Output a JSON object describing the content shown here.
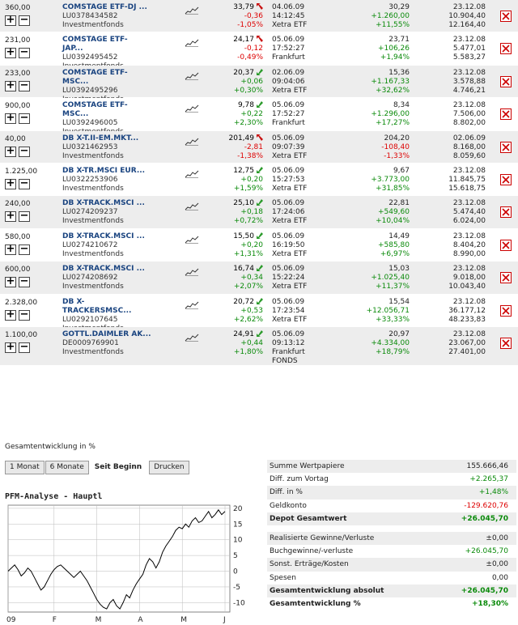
{
  "holdings": [
    {
      "qty": "360,00",
      "name": "COMSTAGE ETF-DJ ...",
      "name2": "",
      "isin": "LU0378434582",
      "type": "Investmentfonds",
      "price": "33,79",
      "change": "-0,36",
      "change_pct": "-1,05%",
      "dir": "down",
      "date": "04.06.09",
      "time": "14:12:45",
      "exchange": "Xetra ETF",
      "exchange2": "",
      "val1": "30,29",
      "val2": "+1.260,00",
      "val3": "+11,55%",
      "buy_date": "23.12.08",
      "buy1": "10.904,40",
      "buy2": "12.164,40"
    },
    {
      "qty": "231,00",
      "name": "COMSTAGE ETF-",
      "name2": "JAP...",
      "isin": "LU0392495452",
      "type": "Investmentfonds",
      "price": "24,17",
      "change": "-0,12",
      "change_pct": "-0,49%",
      "dir": "down",
      "date": "05.06.09",
      "time": "17:52:27",
      "exchange": "Frankfurt",
      "exchange2": "",
      "val1": "23,71",
      "val2": "+106,26",
      "val3": "+1,94%",
      "buy_date": "23.12.08",
      "buy1": "5.477,01",
      "buy2": "5.583,27"
    },
    {
      "qty": "233,00",
      "name": "COMSTAGE ETF-",
      "name2": "MSC...",
      "isin": "LU0392495296",
      "type": "Investmentfonds",
      "price": "20,37",
      "change": "+0,06",
      "change_pct": "+0,30%",
      "dir": "up",
      "date": "02.06.09",
      "time": "09:04:06",
      "exchange": "Xetra ETF",
      "exchange2": "",
      "val1": "15,36",
      "val2": "+1.167,33",
      "val3": "+32,62%",
      "buy_date": "23.12.08",
      "buy1": "3.578,88",
      "buy2": "4.746,21"
    },
    {
      "qty": "900,00",
      "name": "COMSTAGE ETF-",
      "name2": "MSC...",
      "isin": "LU0392496005",
      "type": "Investmentfonds",
      "price": "9,78",
      "change": "+0,22",
      "change_pct": "+2,30%",
      "dir": "up",
      "date": "05.06.09",
      "time": "17:52:27",
      "exchange": "Frankfurt",
      "exchange2": "",
      "val1": "8,34",
      "val2": "+1.296,00",
      "val3": "+17,27%",
      "buy_date": "23.12.08",
      "buy1": "7.506,00",
      "buy2": "8.802,00"
    },
    {
      "qty": "40,00",
      "name": "DB X-T.II-EM.MKT...",
      "name2": "",
      "isin": "LU0321462953",
      "type": "Investmentfonds",
      "price": "201,49",
      "change": "-2,81",
      "change_pct": "-1,38%",
      "dir": "down",
      "date": "05.06.09",
      "time": "09:07:39",
      "exchange": "Xetra ETF",
      "exchange2": "",
      "val1": "204,20",
      "val2": "-108,40",
      "val3": "-1,33%",
      "buy_date": "02.06.09",
      "buy1": "8.168,00",
      "buy2": "8.059,60"
    },
    {
      "qty": "1.225,00",
      "name": "DB X-TR.MSCI EUR...",
      "name2": "",
      "isin": "LU0322253906",
      "type": "Investmentfonds",
      "price": "12,75",
      "change": "+0,20",
      "change_pct": "+1,59%",
      "dir": "up",
      "date": "05.06.09",
      "time": "15:27:53",
      "exchange": "Xetra ETF",
      "exchange2": "",
      "val1": "9,67",
      "val2": "+3.773,00",
      "val3": "+31,85%",
      "buy_date": "23.12.08",
      "buy1": "11.845,75",
      "buy2": "15.618,75"
    },
    {
      "qty": "240,00",
      "name": "DB X-TRACK.MSCI ...",
      "name2": "",
      "isin": "LU0274209237",
      "type": "Investmentfonds",
      "price": "25,10",
      "change": "+0,18",
      "change_pct": "+0,72%",
      "dir": "up",
      "date": "05.06.09",
      "time": "17:24:06",
      "exchange": "Xetra ETF",
      "exchange2": "",
      "val1": "22,81",
      "val2": "+549,60",
      "val3": "+10,04%",
      "buy_date": "23.12.08",
      "buy1": "5.474,40",
      "buy2": "6.024,00"
    },
    {
      "qty": "580,00",
      "name": "DB X-TRACK.MSCI ...",
      "name2": "",
      "isin": "LU0274210672",
      "type": "Investmentfonds",
      "price": "15,50",
      "change": "+0,20",
      "change_pct": "+1,31%",
      "dir": "up",
      "date": "05.06.09",
      "time": "16:19:50",
      "exchange": "Xetra ETF",
      "exchange2": "",
      "val1": "14,49",
      "val2": "+585,80",
      "val3": "+6,97%",
      "buy_date": "23.12.08",
      "buy1": "8.404,20",
      "buy2": "8.990,00"
    },
    {
      "qty": "600,00",
      "name": "DB X-TRACK.MSCI ...",
      "name2": "",
      "isin": "LU0274208692",
      "type": "Investmentfonds",
      "price": "16,74",
      "change": "+0,34",
      "change_pct": "+2,07%",
      "dir": "up",
      "date": "05.06.09",
      "time": "15:22:24",
      "exchange": "Xetra ETF",
      "exchange2": "",
      "val1": "15,03",
      "val2": "+1.025,40",
      "val3": "+11,37%",
      "buy_date": "23.12.08",
      "buy1": "9.018,00",
      "buy2": "10.043,40"
    },
    {
      "qty": "2.328,00",
      "name": "DB X-",
      "name2": "TRACKERSMSC...",
      "isin": "LU0292107645",
      "type": "Investmentfonds",
      "price": "20,72",
      "change": "+0,53",
      "change_pct": "+2,62%",
      "dir": "up",
      "date": "05.06.09",
      "time": "17:23:54",
      "exchange": "Xetra ETF",
      "exchange2": "",
      "val1": "15,54",
      "val2": "+12.056,71",
      "val3": "+33,33%",
      "buy_date": "23.12.08",
      "buy1": "36.177,12",
      "buy2": "48.233,83"
    },
    {
      "qty": "1.100,00",
      "name": "GOTTL.DAIMLER AK...",
      "name2": "",
      "isin": "DE0009769901",
      "type": "Investmentfonds",
      "price": "24,91",
      "change": "+0,44",
      "change_pct": "+1,80%",
      "dir": "up",
      "date": "05.06.09",
      "time": "09:13:12",
      "exchange": "Frankfurt",
      "exchange2": "FONDS",
      "val1": "20,97",
      "val2": "+4.334,00",
      "val3": "+18,79%",
      "buy_date": "23.12.08",
      "buy1": "23.067,00",
      "buy2": "27.401,00"
    }
  ],
  "perf_title": "Gesamtentwicklung in %",
  "tabs": {
    "one_month": "1 Monat",
    "six_months": "6 Monate",
    "since_start": "Seit Beginn",
    "print": "Drucken"
  },
  "chart_title": "PFM-Analyse - Hauptl",
  "chart_data": {
    "type": "line",
    "title": "PFM-Analyse - Hauptl",
    "x_ticks": [
      "09",
      "F",
      "M",
      "A",
      "M",
      "J"
    ],
    "y_ticks": [
      20,
      15,
      10,
      5,
      0,
      -5,
      -10
    ],
    "ylim": [
      -13,
      21
    ],
    "grid": true,
    "series": [
      {
        "values": [
          0,
          1,
          2,
          0.5,
          -1.5,
          -0.5,
          1,
          0,
          -2,
          -4,
          -6,
          -5,
          -3,
          -1,
          0.5,
          1.5,
          2,
          1,
          0,
          -1,
          -2,
          -1,
          0,
          -1.5,
          -3,
          -5,
          -7,
          -9,
          -10.5,
          -11.5,
          -12,
          -10,
          -9,
          -11,
          -12,
          -10,
          -7.5,
          -8.5,
          -6,
          -4,
          -2.5,
          -1,
          2,
          4,
          3,
          1,
          3,
          6,
          8,
          9.5,
          11,
          13,
          14,
          13.5,
          15,
          14,
          16,
          17,
          15.5,
          16,
          17.5,
          19,
          17,
          18,
          19.5,
          18,
          19
        ]
      }
    ]
  },
  "summary": [
    {
      "label": "Summe Wertpapiere",
      "value": "155.666,46",
      "tone": "plain",
      "alt": true,
      "bold": false
    },
    {
      "label": "Diff. zum Vortag",
      "value": "+2.265,37",
      "tone": "pos",
      "alt": false,
      "bold": false
    },
    {
      "label": "Diff. in %",
      "value": "+1,48%",
      "tone": "pos",
      "alt": true,
      "bold": false
    },
    {
      "label": "Geldkonto",
      "value": "-129.620,76",
      "tone": "neg",
      "alt": false,
      "bold": false
    },
    {
      "label": "Depot Gesamtwert",
      "value": "+26.045,70",
      "tone": "pos",
      "alt": true,
      "bold": true
    },
    {
      "gap": true
    },
    {
      "label": "Realisierte Gewinne/Verluste",
      "value": "±0,00",
      "tone": "plain",
      "alt": true,
      "bold": false
    },
    {
      "label": "Buchgewinne/-verluste",
      "value": "+26.045,70",
      "tone": "pos",
      "alt": false,
      "bold": false
    },
    {
      "label": "Sonst. Erträge/Kosten",
      "value": "±0,00",
      "tone": "plain",
      "alt": true,
      "bold": false
    },
    {
      "label": "Spesen",
      "value": "0,00",
      "tone": "plain",
      "alt": false,
      "bold": false
    },
    {
      "label": "Gesamtentwicklung absolut",
      "value": "+26.045,70",
      "tone": "pos",
      "alt": true,
      "bold": true
    },
    {
      "label": "Gesamtentwicklung %",
      "value": "+18,30%",
      "tone": "pos",
      "alt": false,
      "bold": true
    }
  ],
  "colors": {
    "up": "#2a9a2a",
    "down": "#c81010",
    "line": "#000000",
    "grid": "#bbbbbb"
  }
}
